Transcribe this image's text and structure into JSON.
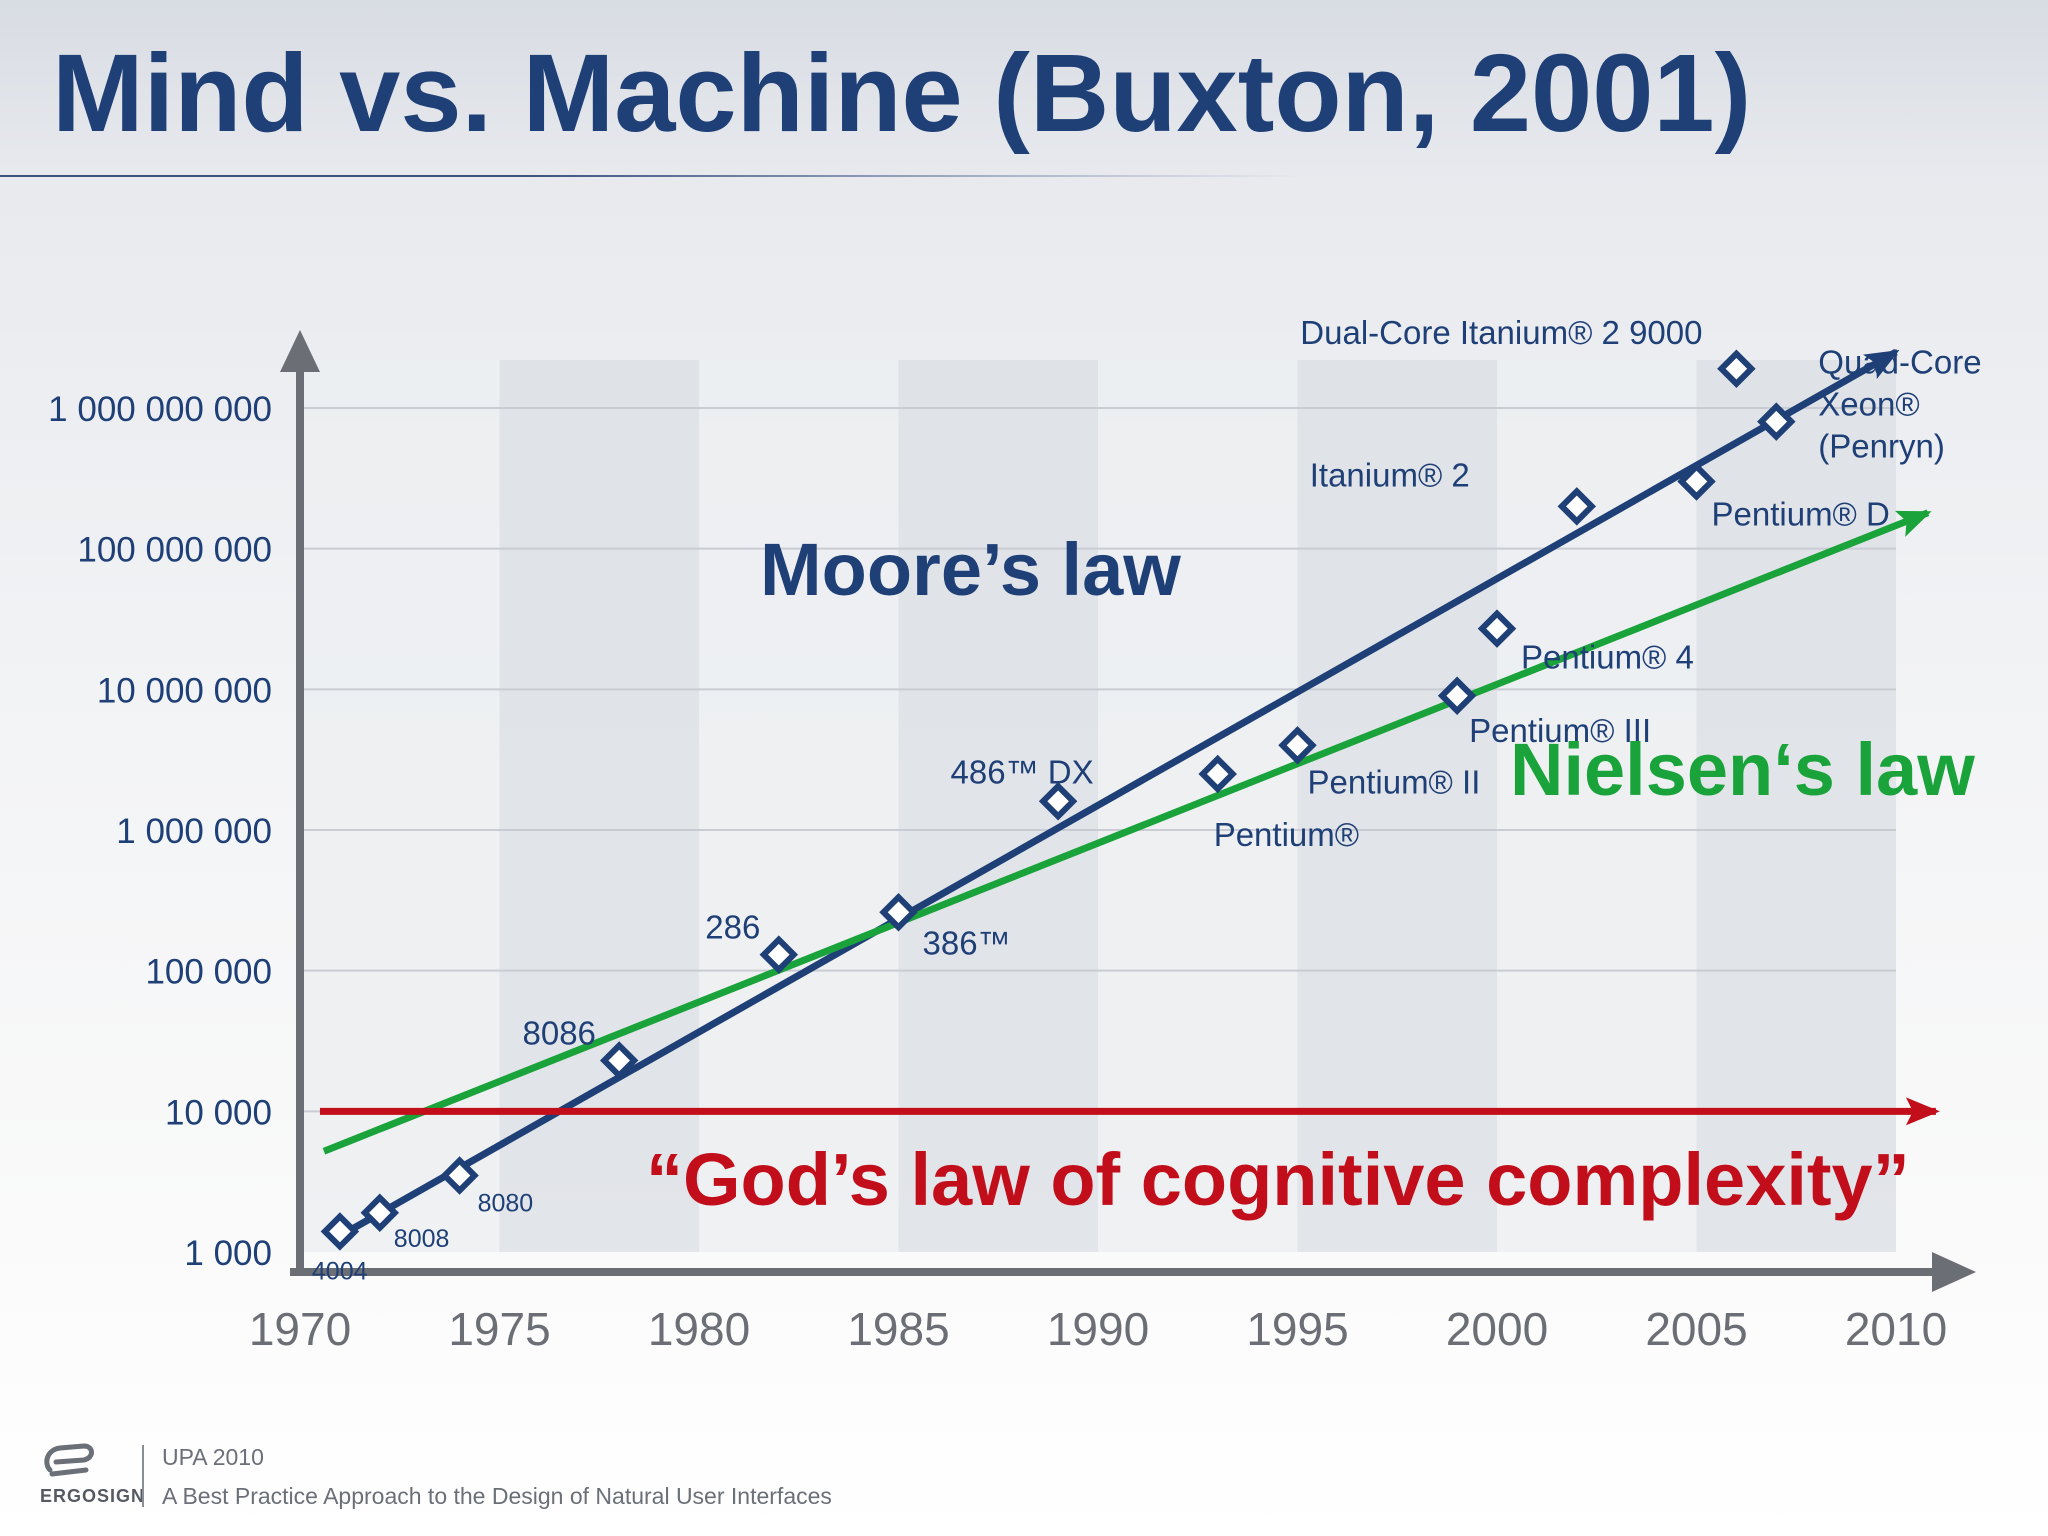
{
  "slide": {
    "title": "Mind vs. Machine (Buxton, 2001)"
  },
  "footer": {
    "logo_text": "ERGOSIGN",
    "event": "UPA 2010",
    "subtitle": "A Best Practice Approach to the Design of Natural User Interfaces"
  },
  "colors": {
    "moore": "#1f3f77",
    "nielsen": "#1aa33a",
    "god": "#c20e1a",
    "axis": "#6b6e74",
    "tick_text": "#1f3f77",
    "year_text": "#6b6e74"
  },
  "chart_data": {
    "type": "scatter",
    "title": "Mind vs. Machine (Buxton, 2001)",
    "y_scale": "log",
    "xlim": [
      1970,
      2010
    ],
    "ylim": [
      1000,
      1000000000
    ],
    "x_ticks": [
      1970,
      1975,
      1980,
      1985,
      1990,
      1995,
      2000,
      2005,
      2010
    ],
    "y_ticks": [
      {
        "value": 1000,
        "label": "1 000"
      },
      {
        "value": 10000,
        "label": "10 000"
      },
      {
        "value": 100000,
        "label": "100 000"
      },
      {
        "value": 1000000,
        "label": "1 000 000"
      },
      {
        "value": 10000000,
        "label": "10 000 000"
      },
      {
        "value": 100000000,
        "label": "100 000 000"
      },
      {
        "value": 1000000000,
        "label": "1 000 000 000"
      }
    ],
    "grid": true,
    "points": [
      {
        "label": "4004",
        "x": 1971,
        "y": 1400
      },
      {
        "label": "8008",
        "x": 1972,
        "y": 1900
      },
      {
        "label": "8080",
        "x": 1974,
        "y": 3500
      },
      {
        "label": "8086",
        "x": 1978,
        "y": 23000
      },
      {
        "label": "286",
        "x": 1982,
        "y": 130000
      },
      {
        "label": "386™",
        "x": 1985,
        "y": 260000
      },
      {
        "label": "486™ DX",
        "x": 1989,
        "y": 1600000
      },
      {
        "label": "Pentium®",
        "x": 1993,
        "y": 2500000
      },
      {
        "label": "Pentium® II",
        "x": 1995,
        "y": 4000000
      },
      {
        "label": "Pentium® III",
        "x": 1999,
        "y": 9000000
      },
      {
        "label": "Pentium® 4",
        "x": 2000,
        "y": 27000000
      },
      {
        "label": "Itanium® 2",
        "x": 2002,
        "y": 200000000
      },
      {
        "label": "Pentium® D",
        "x": 2005,
        "y": 300000000
      },
      {
        "label": "Dual-Core Itanium® 2 9000",
        "x": 2006,
        "y": 1900000000
      },
      {
        "label": "Quad-Core Xeon® (Penryn)",
        "x": 2007,
        "y": 800000000
      }
    ],
    "trend_lines": [
      {
        "name": "Moore’s law",
        "x": [
          1971,
          2010
        ],
        "y": [
          1300,
          2500000000
        ]
      },
      {
        "name": "Nielsen‘s law",
        "x": [
          1970.6,
          2010.8
        ],
        "y": [
          5200,
          180000000
        ]
      },
      {
        "name": "“God’s law of cognitive complexity”",
        "x": [
          1970.5,
          2011
        ],
        "y": [
          10000,
          10000
        ]
      }
    ]
  }
}
